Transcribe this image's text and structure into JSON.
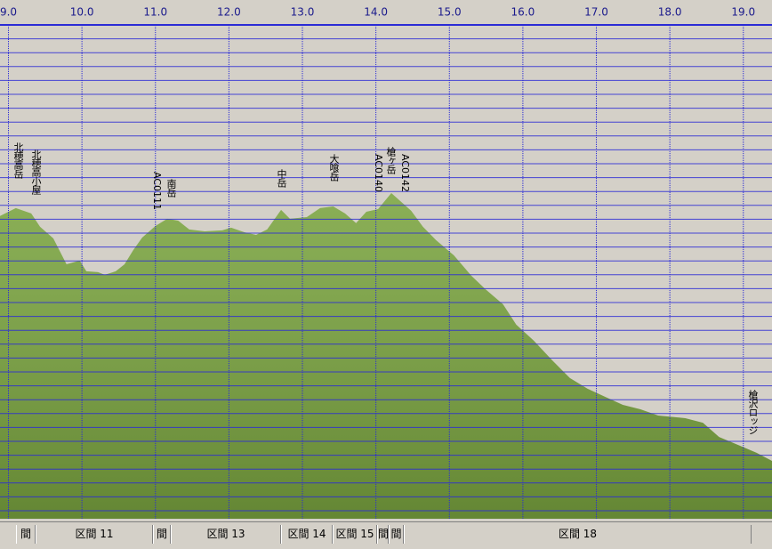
{
  "chart_data": {
    "type": "area",
    "x": [
      8.88,
      9.1,
      9.31,
      9.43,
      9.61,
      9.79,
      9.97,
      10.06,
      10.22,
      10.31,
      10.46,
      10.58,
      10.7,
      10.82,
      11.0,
      11.16,
      11.31,
      11.46,
      11.67,
      11.91,
      12.03,
      12.21,
      12.37,
      12.52,
      12.71,
      12.83,
      13.06,
      13.24,
      13.42,
      13.58,
      13.73,
      13.87,
      14.03,
      14.21,
      14.48,
      14.64,
      14.82,
      15.06,
      15.3,
      15.49,
      15.73,
      15.91,
      16.15,
      16.4,
      16.64,
      16.88,
      17.12,
      17.36,
      17.6,
      17.84,
      18.21,
      18.45,
      18.67,
      18.93,
      19.18,
      19.39
    ],
    "values": [
      3042,
      3090,
      3058,
      2978,
      2909,
      2754,
      2776,
      2712,
      2707,
      2691,
      2712,
      2754,
      2840,
      2914,
      2983,
      3026,
      3015,
      2962,
      2951,
      2957,
      2973,
      2946,
      2930,
      2962,
      3079,
      3026,
      3036,
      3090,
      3100,
      3058,
      3000,
      3068,
      3084,
      3180,
      3074,
      2978,
      2898,
      2808,
      2685,
      2605,
      2515,
      2393,
      2297,
      2180,
      2074,
      2010,
      1962,
      1914,
      1887,
      1850,
      1834,
      1807,
      1722,
      1674,
      1627,
      1579
    ],
    "color": "#7aa43f",
    "xlim": [
      8.885,
      19.39
    ],
    "ylim": [
      1233,
      4185
    ],
    "xticks": [
      {
        "value": 9,
        "label": "9.0"
      },
      {
        "value": 10,
        "label": "10.0"
      },
      {
        "value": 11,
        "label": "11.0"
      },
      {
        "value": 12,
        "label": "12.0"
      },
      {
        "value": 13,
        "label": "13.0"
      },
      {
        "value": 14,
        "label": "14.0"
      },
      {
        "value": 15,
        "label": "15.0"
      },
      {
        "value": 16,
        "label": "16.0"
      },
      {
        "value": 17,
        "label": "17.0"
      },
      {
        "value": 18,
        "label": "18.0"
      },
      {
        "value": 19,
        "label": "19.0"
      }
    ],
    "grid": true,
    "annotations": [
      "北穂高岳",
      "北穂高小屋",
      "AC0111",
      "南岳",
      "中岳",
      "大喰岳",
      "AC0140",
      "槍ヶ岳",
      "AC0142",
      "槍沢ロッジ"
    ],
    "sections": [
      "間",
      "区間 11",
      "間",
      "区間 13",
      "区間 14",
      "区間 15",
      "間",
      "間",
      "区間 18"
    ]
  }
}
